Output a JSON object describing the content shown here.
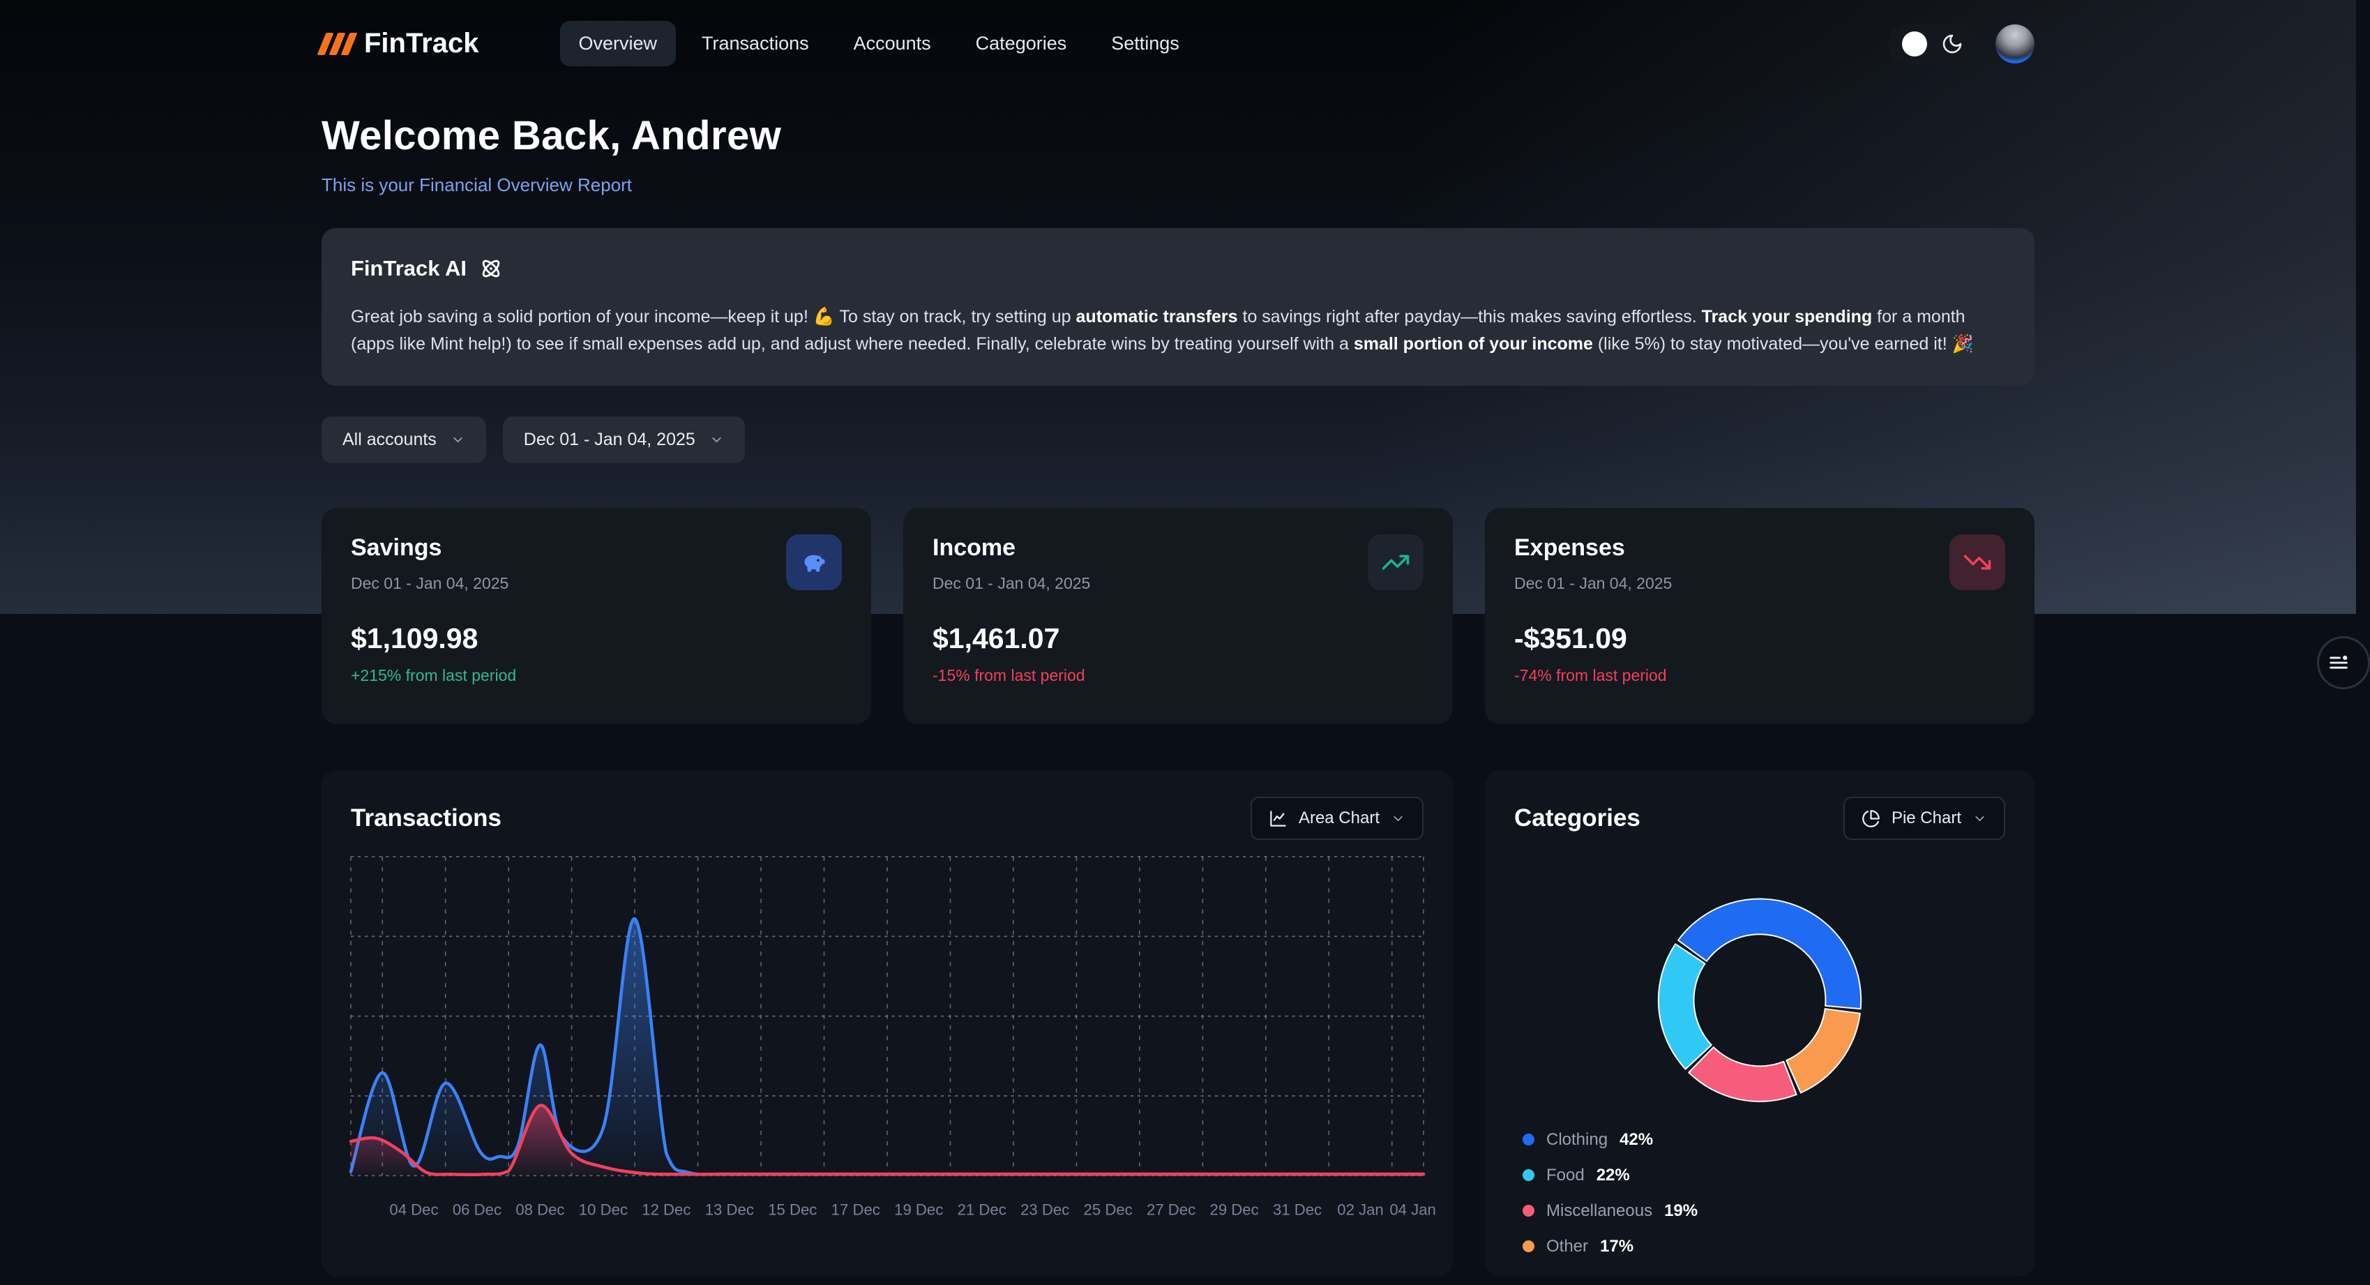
{
  "brand": {
    "name": "FinTrack",
    "logo_icon": "triple-slash-logo-icon",
    "accent_color": "#f97316"
  },
  "nav": {
    "items": [
      {
        "label": "Overview",
        "active": true
      },
      {
        "label": "Transactions",
        "active": false
      },
      {
        "label": "Accounts",
        "active": false
      },
      {
        "label": "Categories",
        "active": false
      },
      {
        "label": "Settings",
        "active": false
      }
    ]
  },
  "header_bar": {
    "theme_toggle_icons": [
      "sun-icon",
      "moon-icon"
    ],
    "avatar_icon": "user-avatar"
  },
  "welcome": {
    "title": "Welcome Back, Andrew",
    "subtitle": "This is your Financial Overview Report",
    "subtitle_color": "#7ca3ea"
  },
  "ai_card": {
    "title": "FinTrack AI",
    "icon": "atom-icon",
    "message_segments": [
      {
        "text": "Great job saving a solid portion of your income—keep it up! 💪 To stay on track, try setting up ",
        "bold": false
      },
      {
        "text": "automatic transfers",
        "bold": true
      },
      {
        "text": " to savings right after payday—this makes saving effortless. ",
        "bold": false
      },
      {
        "text": "Track your spending",
        "bold": true
      },
      {
        "text": " for a month (apps like Mint help!) to see if small expenses add up, and adjust where needed. Finally, celebrate wins by treating yourself with a ",
        "bold": false
      },
      {
        "text": "small portion of your income",
        "bold": true
      },
      {
        "text": " (like 5%) to stay motivated—you've earned it! 🎉",
        "bold": false
      }
    ]
  },
  "filters": {
    "accounts_label": "All accounts",
    "date_range_label": "Dec 01 - Jan 04, 2025",
    "dropdown_icon": "chevron-down-icon"
  },
  "stats": [
    {
      "title": "Savings",
      "period": "Dec 01 - Jan 04, 2025",
      "amount": "$1,109.98",
      "delta": "+215% from last period",
      "delta_color": "#2dbd8c",
      "icon": "piggy-bank-icon",
      "icon_color": "#5b8df8",
      "icon_bg": "rgba(42,78,168,0.55)"
    },
    {
      "title": "Income",
      "period": "Dec 01 - Jan 04, 2025",
      "amount": "$1,461.07",
      "delta": "-15% from last period",
      "delta_color": "#f4405e",
      "icon": "trending-up-icon",
      "icon_color": "#14b98a",
      "icon_bg": "#1d242e"
    },
    {
      "title": "Expenses",
      "period": "Dec 01 - Jan 04, 2025",
      "amount": "-$351.09",
      "delta": "-74% from last period",
      "delta_color": "#f4405e",
      "icon": "trending-down-icon",
      "icon_color": "#f43f5e",
      "icon_bg": "#41222e"
    }
  ],
  "transactions_panel": {
    "title": "Transactions",
    "chart_selector": {
      "label": "Area Chart",
      "icon": "area-chart-icon",
      "chevron": "chevron-down-icon"
    }
  },
  "categories_panel": {
    "title": "Categories",
    "chart_selector": {
      "label": "Pie Chart",
      "icon": "pie-chart-icon",
      "chevron": "chevron-down-icon"
    }
  },
  "floating_button": {
    "icon": "filter-menu-icon"
  },
  "chart_data": [
    {
      "type": "area",
      "title": "Transactions",
      "grid": "dashed",
      "x_range": [
        0,
        17
      ],
      "y_range": [
        0,
        4
      ],
      "y_tick_labels_shown": false,
      "x_tick_labels": [
        "04 Dec",
        "06 Dec",
        "08 Dec",
        "10 Dec",
        "12 Dec",
        "13 Dec",
        "15 Dec",
        "17 Dec",
        "19 Dec",
        "21 Dec",
        "23 Dec",
        "25 Dec",
        "27 Dec",
        "29 Dec",
        "31 Dec",
        "02 Jan",
        "04 Jan"
      ],
      "x_tick_units": [
        1,
        2,
        3,
        4,
        5,
        6,
        7,
        8,
        9,
        10,
        11,
        12,
        13,
        14,
        15,
        16,
        16.83
      ],
      "note": "y values are relative grid units (no y-axis labels shown on screen)",
      "series": [
        {
          "name": "blue-area",
          "color": "#3b82f6",
          "points": [
            [
              0,
              0.05
            ],
            [
              0.5,
              1.29
            ],
            [
              1,
              0.12
            ],
            [
              1.5,
              1.16
            ],
            [
              2.05,
              0.3
            ],
            [
              2.35,
              0.24
            ],
            [
              2.65,
              0.38
            ],
            [
              3,
              1.64
            ],
            [
              3.35,
              0.48
            ],
            [
              4,
              0.6
            ],
            [
              4.5,
              3.22
            ],
            [
              5,
              0.28
            ],
            [
              5.35,
              0.04
            ],
            [
              6,
              0.02
            ],
            [
              7.5,
              0.02
            ],
            [
              9,
              0.02
            ],
            [
              10.5,
              0.02
            ],
            [
              12,
              0.02
            ],
            [
              13.5,
              0.02
            ],
            [
              15,
              0.02
            ],
            [
              16,
              0.02
            ],
            [
              17,
              0.02
            ]
          ]
        },
        {
          "name": "red-area",
          "color": "#f43f5e",
          "points": [
            [
              0,
              0.43
            ],
            [
              0.4,
              0.47
            ],
            [
              0.8,
              0.3
            ],
            [
              1.2,
              0.04
            ],
            [
              1.6,
              0
            ],
            [
              2.1,
              0
            ],
            [
              2.5,
              0.06
            ],
            [
              3,
              0.88
            ],
            [
              3.5,
              0.28
            ],
            [
              4,
              0.11
            ],
            [
              4.6,
              0.03
            ],
            [
              5.2,
              0
            ],
            [
              6.5,
              0
            ],
            [
              8,
              0
            ],
            [
              9.5,
              0
            ],
            [
              11,
              0
            ],
            [
              12.5,
              0
            ],
            [
              14,
              0
            ],
            [
              15.5,
              0
            ],
            [
              17,
              0
            ]
          ]
        }
      ]
    },
    {
      "type": "pie",
      "title": "Categories",
      "donut": true,
      "segments": [
        {
          "label": "Clothing",
          "value": 42,
          "color": "#1f6bf2"
        },
        {
          "label": "Food",
          "value": 22,
          "color": "#30c9f5"
        },
        {
          "label": "Miscellaneous",
          "value": 19,
          "color": "#f75c7c"
        },
        {
          "label": "Other",
          "value": 17,
          "color": "#f99b4e"
        }
      ],
      "draw_order": [
        "Clothing",
        "Other",
        "Miscellaneous",
        "Food"
      ],
      "start_deg": -55,
      "legend_position": "below-left"
    }
  ]
}
